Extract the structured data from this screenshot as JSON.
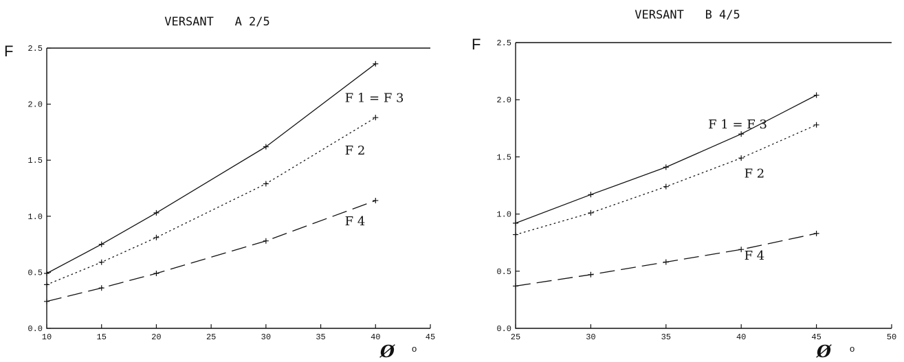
{
  "chart_data": [
    {
      "type": "line",
      "title": "VERSANT   A 2/5",
      "ylabel": "F",
      "xlabel": "Ø",
      "xunit": "o",
      "xlim": [
        10,
        45
      ],
      "ylim": [
        0.0,
        2.5
      ],
      "xticks": [
        "10",
        "15",
        "20",
        "25",
        "30",
        "35",
        "40",
        "45"
      ],
      "yticks": [
        "0.0",
        "0.5",
        "1.0",
        "1.5",
        "2.0",
        "2.5"
      ],
      "grid": false,
      "series": [
        {
          "name": "F 1 = F 3",
          "style": "solid",
          "label_at": [
            37.2,
            2.02
          ],
          "points": [
            [
              10,
              0.49
            ],
            [
              15,
              0.75
            ],
            [
              20,
              1.03
            ],
            [
              30,
              1.62
            ],
            [
              40,
              2.36
            ]
          ]
        },
        {
          "name": "F 2",
          "style": "dotted",
          "label_at": [
            37.2,
            1.55
          ],
          "points": [
            [
              10,
              0.39
            ],
            [
              15,
              0.59
            ],
            [
              20,
              0.81
            ],
            [
              30,
              1.29
            ],
            [
              40,
              1.88
            ]
          ]
        },
        {
          "name": "F 4",
          "style": "dashed",
          "label_at": [
            37.2,
            0.92
          ],
          "points": [
            [
              10,
              0.24
            ],
            [
              15,
              0.36
            ],
            [
              20,
              0.49
            ],
            [
              30,
              0.78
            ],
            [
              40,
              1.14
            ]
          ]
        }
      ]
    },
    {
      "type": "line",
      "title": "VERSANT   B 4/5",
      "ylabel": "F",
      "xlabel": "Ø",
      "xunit": "o",
      "xlim": [
        25,
        50
      ],
      "ylim": [
        0.0,
        2.5
      ],
      "xticks": [
        "25",
        "30",
        "35",
        "40",
        "45",
        "50"
      ],
      "yticks": [
        "0.0",
        "0.5",
        "1.0",
        "1.5",
        "2.0",
        "2.5"
      ],
      "grid": false,
      "series": [
        {
          "name": "F 1 = F 3",
          "style": "solid",
          "label_at": [
            37.8,
            1.75
          ],
          "points": [
            [
              25,
              0.92
            ],
            [
              30,
              1.17
            ],
            [
              35,
              1.41
            ],
            [
              40,
              1.7
            ],
            [
              45,
              2.04
            ]
          ]
        },
        {
          "name": "F 2",
          "style": "dotted",
          "label_at": [
            40.2,
            1.32
          ],
          "points": [
            [
              25,
              0.82
            ],
            [
              30,
              1.01
            ],
            [
              35,
              1.24
            ],
            [
              40,
              1.49
            ],
            [
              45,
              1.78
            ]
          ]
        },
        {
          "name": "F 4",
          "style": "dashed",
          "label_at": [
            40.2,
            0.6
          ],
          "points": [
            [
              25,
              0.37
            ],
            [
              30,
              0.47
            ],
            [
              35,
              0.58
            ],
            [
              40,
              0.69
            ],
            [
              45,
              0.83
            ]
          ]
        }
      ]
    }
  ]
}
